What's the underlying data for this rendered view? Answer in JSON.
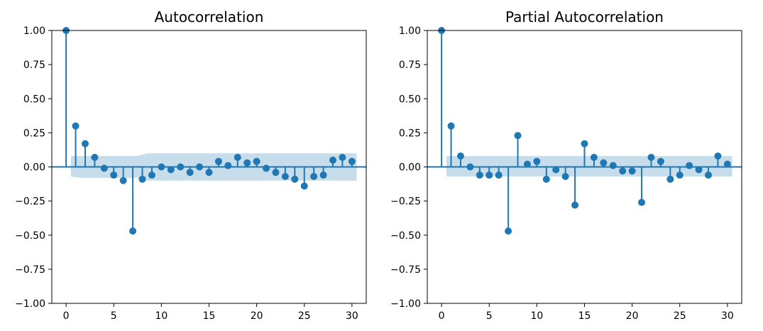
{
  "chart_data": [
    {
      "type": "scatter",
      "subtype": "stem",
      "title": "Autocorrelation",
      "xlabel": "",
      "ylabel": "",
      "xlim": [
        -1.5,
        31.5
      ],
      "ylim": [
        -1.0,
        1.0
      ],
      "x_ticks": [
        0,
        5,
        10,
        15,
        20,
        25,
        30
      ],
      "y_ticks": [
        1.0,
        0.75,
        0.5,
        0.25,
        0.0,
        -0.25,
        -0.5,
        -0.75,
        -1.0
      ],
      "x_tick_labels": [
        "0",
        "5",
        "10",
        "15",
        "20",
        "25",
        "30"
      ],
      "y_tick_labels": [
        "1.00",
        "0.75",
        "0.50",
        "0.25",
        "0.00",
        "−0.25",
        "−0.50",
        "−0.75",
        "−1.00"
      ],
      "lags": [
        0,
        1,
        2,
        3,
        4,
        5,
        6,
        7,
        8,
        9,
        10,
        11,
        12,
        13,
        14,
        15,
        16,
        17,
        18,
        19,
        20,
        21,
        22,
        23,
        24,
        25,
        26,
        27,
        28,
        29,
        30
      ],
      "values": [
        1.0,
        0.3,
        0.17,
        0.07,
        -0.01,
        -0.06,
        -0.1,
        -0.47,
        -0.09,
        -0.06,
        0.0,
        -0.02,
        0.0,
        -0.04,
        0.0,
        -0.04,
        0.04,
        0.01,
        0.07,
        0.03,
        0.04,
        -0.01,
        -0.04,
        -0.07,
        -0.09,
        -0.14,
        -0.07,
        -0.06,
        0.05,
        0.07,
        0.04
      ],
      "confidence_band": {
        "x_range": [
          0.5,
          30.5
        ],
        "upper": [
          0.08,
          0.08,
          0.08,
          0.08,
          0.08,
          0.08,
          0.08,
          0.08,
          0.1,
          0.1,
          0.1,
          0.1,
          0.1,
          0.1,
          0.1,
          0.1,
          0.1,
          0.1,
          0.1,
          0.1,
          0.1,
          0.1,
          0.1,
          0.1,
          0.1,
          0.1,
          0.1,
          0.1,
          0.1,
          0.1,
          0.1
        ],
        "lower": [
          -0.07,
          -0.08,
          -0.08,
          -0.08,
          -0.08,
          -0.08,
          -0.08,
          -0.08,
          -0.1,
          -0.1,
          -0.1,
          -0.1,
          -0.1,
          -0.1,
          -0.1,
          -0.1,
          -0.1,
          -0.1,
          -0.1,
          -0.1,
          -0.1,
          -0.1,
          -0.1,
          -0.1,
          -0.1,
          -0.1,
          -0.1,
          -0.1,
          -0.1,
          -0.1,
          -0.1
        ]
      },
      "grid": false,
      "colors": {
        "series": "#1f77b4",
        "band": "#1f77b4"
      }
    },
    {
      "type": "scatter",
      "subtype": "stem",
      "title": "Partial Autocorrelation",
      "xlabel": "",
      "ylabel": "",
      "xlim": [
        -1.5,
        31.5
      ],
      "ylim": [
        -1.0,
        1.0
      ],
      "x_ticks": [
        0,
        5,
        10,
        15,
        20,
        25,
        30
      ],
      "y_ticks": [
        1.0,
        0.75,
        0.5,
        0.25,
        0.0,
        -0.25,
        -0.5,
        -0.75,
        -1.0
      ],
      "x_tick_labels": [
        "0",
        "5",
        "10",
        "15",
        "20",
        "25",
        "30"
      ],
      "y_tick_labels": [
        "1.00",
        "0.75",
        "0.50",
        "0.25",
        "0.00",
        "−0.25",
        "−0.50",
        "−0.75",
        "−1.00"
      ],
      "lags": [
        0,
        1,
        2,
        3,
        4,
        5,
        6,
        7,
        8,
        9,
        10,
        11,
        12,
        13,
        14,
        15,
        16,
        17,
        18,
        19,
        20,
        21,
        22,
        23,
        24,
        25,
        26,
        27,
        28,
        29,
        30
      ],
      "values": [
        1.0,
        0.3,
        0.08,
        0.0,
        -0.06,
        -0.06,
        -0.06,
        -0.47,
        0.23,
        0.02,
        0.04,
        -0.09,
        -0.02,
        -0.07,
        -0.28,
        0.17,
        0.07,
        0.03,
        0.01,
        -0.03,
        -0.03,
        -0.26,
        0.07,
        0.04,
        -0.09,
        -0.06,
        0.01,
        -0.02,
        -0.06,
        0.08,
        0.02
      ],
      "confidence_band": {
        "x_range": [
          0.5,
          30.5
        ],
        "upper": [
          0.08,
          0.08,
          0.08,
          0.08,
          0.08,
          0.08,
          0.08,
          0.08,
          0.08,
          0.08,
          0.08,
          0.08,
          0.08,
          0.08,
          0.08,
          0.08,
          0.08,
          0.08,
          0.08,
          0.08,
          0.08,
          0.08,
          0.08,
          0.08,
          0.08,
          0.08,
          0.08,
          0.08,
          0.08,
          0.08,
          0.08
        ],
        "lower": [
          -0.07,
          -0.07,
          -0.07,
          -0.07,
          -0.07,
          -0.07,
          -0.07,
          -0.07,
          -0.07,
          -0.07,
          -0.07,
          -0.07,
          -0.07,
          -0.07,
          -0.07,
          -0.07,
          -0.07,
          -0.07,
          -0.07,
          -0.07,
          -0.07,
          -0.07,
          -0.07,
          -0.07,
          -0.07,
          -0.07,
          -0.07,
          -0.07,
          -0.07,
          -0.07,
          -0.07
        ]
      },
      "grid": false,
      "colors": {
        "series": "#1f77b4",
        "band": "#1f77b4"
      }
    }
  ]
}
